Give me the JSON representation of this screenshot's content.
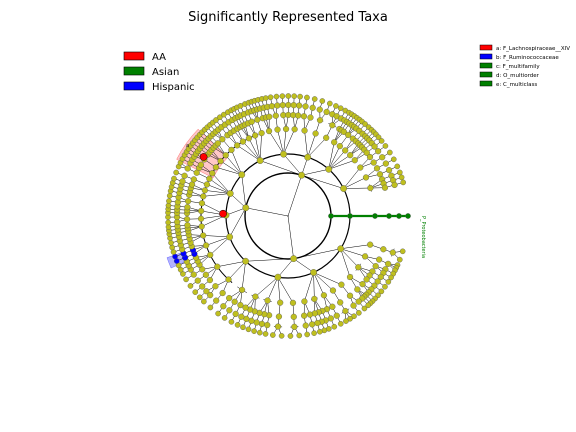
{
  "chart_data": {
    "type": "cladogram",
    "title": "Significantly Represented Taxa",
    "legend": {
      "placement": "top-left",
      "entries": [
        {
          "name": "AA",
          "color": "#ff0000"
        },
        {
          "name": "Asian",
          "color": "#008000"
        },
        {
          "name": "Hispanic",
          "color": "#0000ff"
        }
      ]
    },
    "key": {
      "placement": "top-right",
      "entries": [
        {
          "letter": "a",
          "label": "a: F_Lachnospiraceae__XIV",
          "color": "#ff0000"
        },
        {
          "letter": "b",
          "label": "b: F_Ruminococcaceae",
          "color": "#0000ff"
        },
        {
          "letter": "c",
          "label": "c: F_multifamily",
          "color": "#008000"
        },
        {
          "letter": "d",
          "label": "d: O_multiorder",
          "color": "#008000"
        },
        {
          "letter": "e",
          "label": "e: C_multiclass",
          "color": "#008000"
        }
      ]
    },
    "branch_label": "P_Proteobacteria",
    "ring_levels": 7,
    "default_node_color": "#bfbf1f",
    "highlighted_clades": [
      {
        "group": "AA",
        "color": "#ff0000",
        "start_deg": 207,
        "end_deg": 224,
        "letter": "a"
      },
      {
        "group": "Hispanic",
        "color": "#0000ff",
        "start_deg": 156,
        "end_deg": 161,
        "letter": "b"
      },
      {
        "group": "Asian",
        "color": "#008000",
        "start_deg": 355,
        "end_deg": 5,
        "letters": [
          "c",
          "d",
          "e"
        ]
      }
    ]
  }
}
